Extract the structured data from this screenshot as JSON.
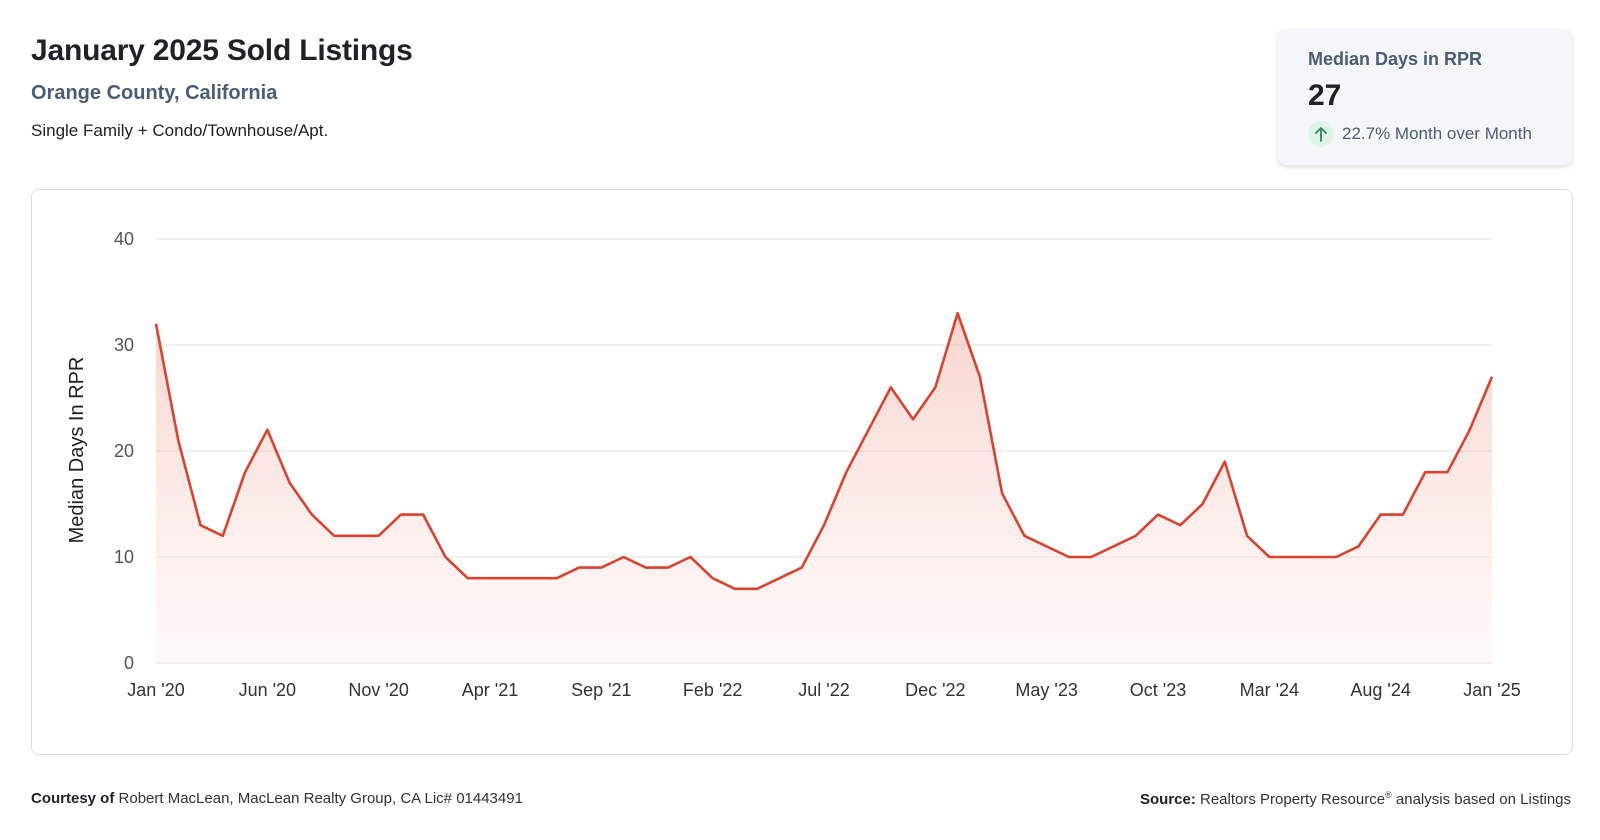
{
  "header": {
    "title": "January 2025 Sold Listings",
    "location": "Orange County, California",
    "property_types": "Single Family + Condo/Townhouse/Apt."
  },
  "metric": {
    "label": "Median Days in RPR",
    "value": "27",
    "change": "22.7% Month over Month",
    "direction_icon": "arrow-up-icon",
    "up_color": "#2e8b57"
  },
  "footer": {
    "courtesy_label": "Courtesy of",
    "courtesy_text": "Robert MacLean, MacLean Realty Group, CA Lic# 01443491",
    "source_label": "Source:",
    "source_text": "Realtors Property Resource",
    "source_mark": "®",
    "source_suffix": "analysis based on Listings"
  },
  "colors": {
    "line": "#d9432f",
    "fill": "#f4c3bb",
    "grid": "#e3e3e3",
    "text": "#333333"
  },
  "chart_data": {
    "type": "area",
    "ylabel": "Median Days In RPR",
    "xlabel": "",
    "ylim": [
      0,
      40
    ],
    "yticks": [
      0,
      10,
      20,
      30,
      40
    ],
    "grid": true,
    "x_tick_labels": [
      "Jan '20",
      "Jun '20",
      "Nov '20",
      "Apr '21",
      "Sep '21",
      "Feb '22",
      "Jul '22",
      "Dec '22",
      "May '23",
      "Oct '23",
      "Mar '24",
      "Aug '24",
      "Jan '25"
    ],
    "x": [
      "2020-01",
      "2020-02",
      "2020-03",
      "2020-04",
      "2020-05",
      "2020-06",
      "2020-07",
      "2020-08",
      "2020-09",
      "2020-10",
      "2020-11",
      "2020-12",
      "2021-01",
      "2021-02",
      "2021-03",
      "2021-04",
      "2021-05",
      "2021-06",
      "2021-07",
      "2021-08",
      "2021-09",
      "2021-10",
      "2021-11",
      "2021-12",
      "2022-01",
      "2022-02",
      "2022-03",
      "2022-04",
      "2022-05",
      "2022-06",
      "2022-07",
      "2022-08",
      "2022-09",
      "2022-10",
      "2022-11",
      "2022-12",
      "2023-01",
      "2023-02",
      "2023-03",
      "2023-04",
      "2023-05",
      "2023-06",
      "2023-07",
      "2023-08",
      "2023-09",
      "2023-10",
      "2023-11",
      "2023-12",
      "2024-01",
      "2024-02",
      "2024-03",
      "2024-04",
      "2024-05",
      "2024-06",
      "2024-07",
      "2024-08",
      "2024-09",
      "2024-10",
      "2024-11",
      "2024-12",
      "2025-01"
    ],
    "values": [
      32,
      21,
      13,
      12,
      18,
      22,
      17,
      14,
      12,
      12,
      12,
      14,
      14,
      10,
      8,
      8,
      8,
      8,
      8,
      9,
      9,
      10,
      9,
      9,
      10,
      8,
      7,
      7,
      8,
      9,
      13,
      18,
      22,
      26,
      23,
      26,
      33,
      27,
      16,
      12,
      11,
      10,
      10,
      11,
      12,
      14,
      13,
      15,
      19,
      12,
      10,
      10,
      10,
      10,
      11,
      14,
      14,
      18,
      18,
      22,
      27
    ]
  }
}
